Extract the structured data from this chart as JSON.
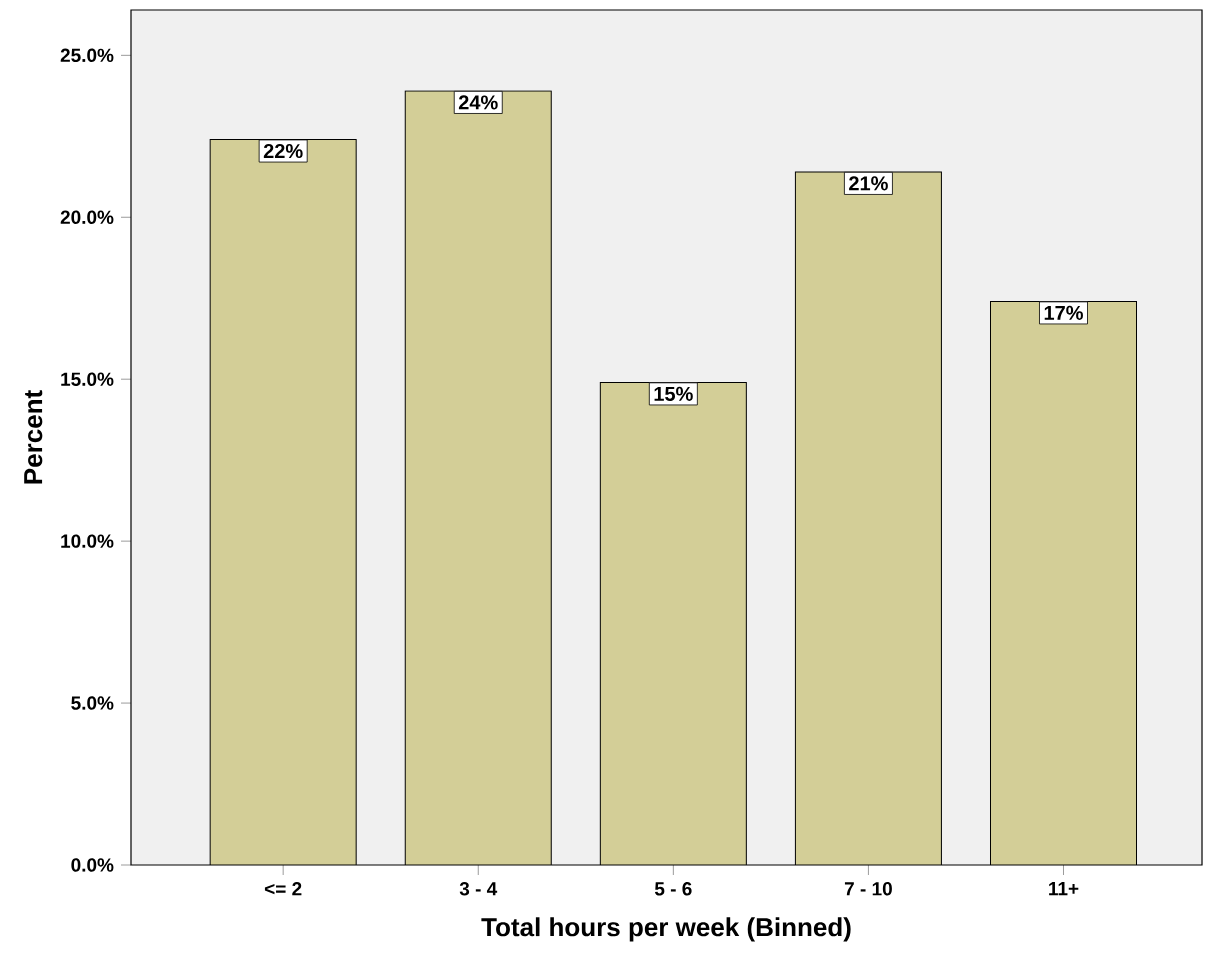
{
  "chart_data": {
    "type": "bar",
    "xlabel": "Total hours per week (Binned)",
    "ylabel": "Percent",
    "categories": [
      "<= 2",
      "3 - 4",
      "5 - 6",
      "7 - 10",
      "11+"
    ],
    "values": [
      22.4,
      23.9,
      14.9,
      21.4,
      17.4
    ],
    "value_labels": [
      "22%",
      "24%",
      "15%",
      "21%",
      "17%"
    ],
    "color": "#d3ce97",
    "ylim": [
      0,
      26.4
    ],
    "yticks": [
      {
        "value": 0,
        "label": "0.0%"
      },
      {
        "value": 5,
        "label": "5.0%"
      },
      {
        "value": 10,
        "label": "10.0%"
      },
      {
        "value": 15,
        "label": "15.0%"
      },
      {
        "value": 20,
        "label": "20.0%"
      },
      {
        "value": 25,
        "label": "25.0%"
      }
    ]
  }
}
